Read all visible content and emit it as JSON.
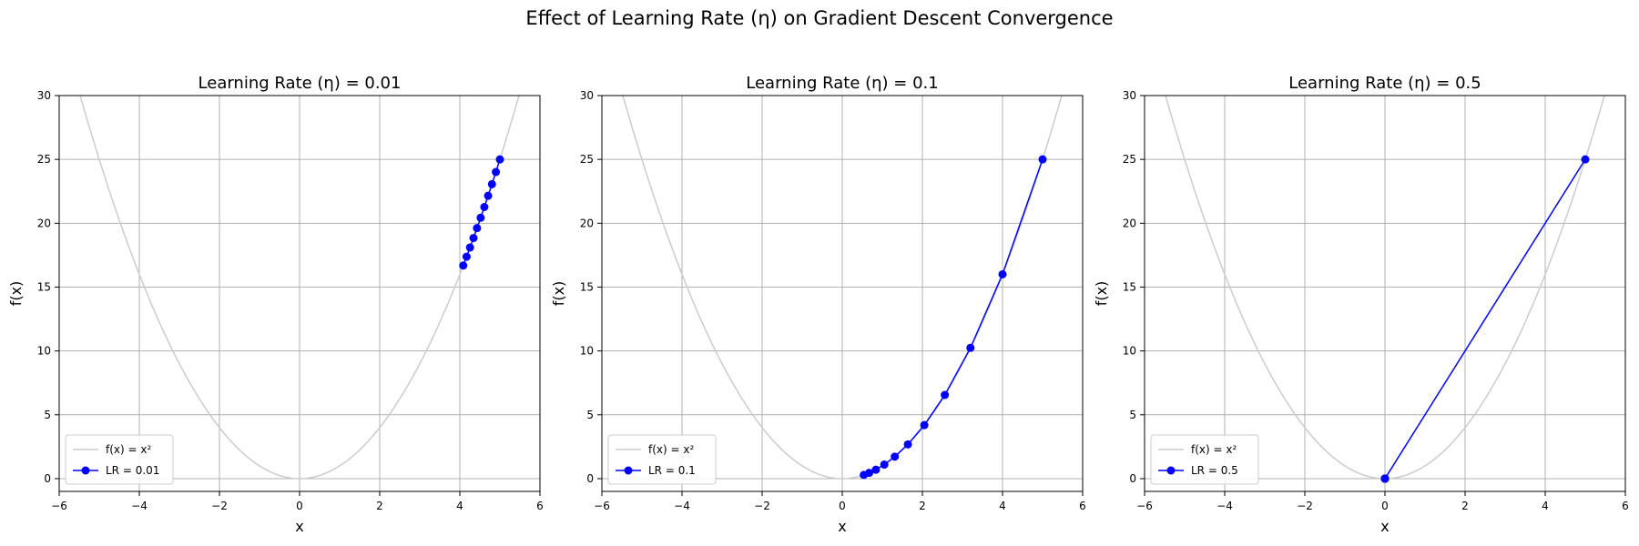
{
  "figure": {
    "suptitle": "Effect of Learning Rate (η) on Gradient Descent Convergence"
  },
  "chart_data": [
    {
      "type": "line",
      "title": "Learning Rate (η) = 0.01",
      "xlabel": "x",
      "ylabel": "f(x)",
      "xlim": [
        -6,
        6
      ],
      "ylim": [
        -1,
        30
      ],
      "xticks": [
        -6,
        -4,
        -2,
        0,
        2,
        4,
        6
      ],
      "yticks": [
        0,
        5,
        10,
        15,
        20,
        25,
        30
      ],
      "grid": true,
      "legend_position": "lower-left",
      "series": [
        {
          "name": "f(x) = x²",
          "kind": "curve",
          "color": "#cccccc"
        },
        {
          "name": "LR = 0.01",
          "kind": "path",
          "color": "#0000ff",
          "x": [
            5.0,
            4.9,
            4.802,
            4.706,
            4.612,
            4.52,
            4.429,
            4.341,
            4.254,
            4.169,
            4.085
          ],
          "y": [
            25.0,
            24.01,
            23.06,
            22.15,
            21.27,
            20.43,
            19.62,
            18.84,
            18.1,
            17.38,
            16.69
          ]
        }
      ]
    },
    {
      "type": "line",
      "title": "Learning Rate (η) = 0.1",
      "xlabel": "x",
      "ylabel": "f(x)",
      "xlim": [
        -6,
        6
      ],
      "ylim": [
        -1,
        30
      ],
      "xticks": [
        -6,
        -4,
        -2,
        0,
        2,
        4,
        6
      ],
      "yticks": [
        0,
        5,
        10,
        15,
        20,
        25,
        30
      ],
      "grid": true,
      "legend_position": "lower-left",
      "series": [
        {
          "name": "f(x) = x²",
          "kind": "curve",
          "color": "#cccccc"
        },
        {
          "name": "LR = 0.1",
          "kind": "path",
          "color": "#0000ff",
          "x": [
            5.0,
            4.0,
            3.2,
            2.56,
            2.048,
            1.638,
            1.311,
            1.049,
            0.839,
            0.671,
            0.537
          ],
          "y": [
            25.0,
            16.0,
            10.24,
            6.55,
            4.19,
            2.68,
            1.72,
            1.1,
            0.7,
            0.45,
            0.29
          ]
        }
      ]
    },
    {
      "type": "line",
      "title": "Learning Rate (η) = 0.5",
      "xlabel": "x",
      "ylabel": "f(x)",
      "xlim": [
        -6,
        6
      ],
      "ylim": [
        -1,
        30
      ],
      "xticks": [
        -6,
        -4,
        -2,
        0,
        2,
        4,
        6
      ],
      "yticks": [
        0,
        5,
        10,
        15,
        20,
        25,
        30
      ],
      "grid": true,
      "legend_position": "lower-left",
      "series": [
        {
          "name": "f(x) = x²",
          "kind": "curve",
          "color": "#cccccc"
        },
        {
          "name": "LR = 0.5",
          "kind": "path",
          "color": "#0000ff",
          "x": [
            5.0,
            0,
            0,
            0,
            0,
            0,
            0,
            0,
            0,
            0,
            0
          ],
          "y": [
            25.0,
            0,
            0,
            0,
            0,
            0,
            0,
            0,
            0,
            0,
            0
          ]
        }
      ]
    }
  ]
}
